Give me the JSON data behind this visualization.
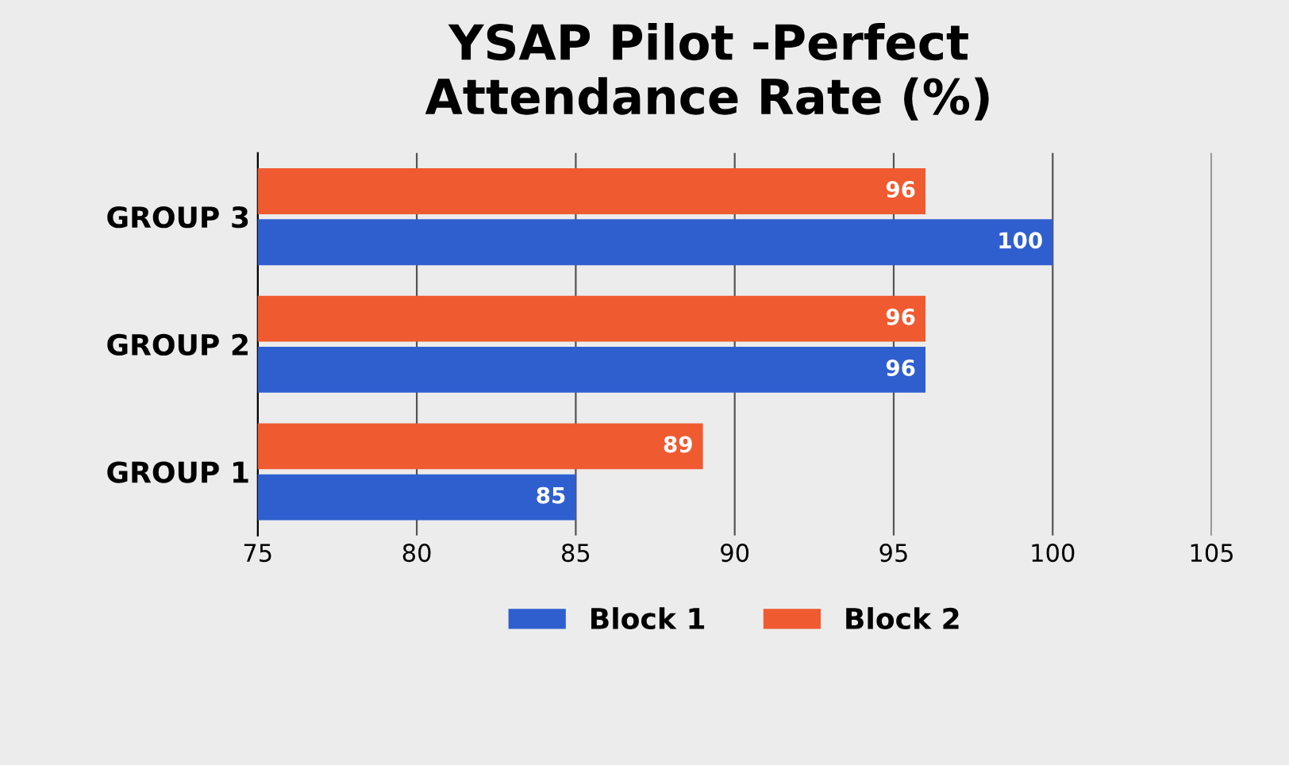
{
  "chart_data": {
    "type": "bar",
    "orientation": "horizontal",
    "title": "YSAP Pilot -Perfect\nAttendance Rate (%)",
    "categories": [
      "GROUP 3",
      "GROUP 2",
      "GROUP 1"
    ],
    "series": [
      {
        "name": "Block 2",
        "color": "#f05a30",
        "values": [
          96,
          96,
          89
        ]
      },
      {
        "name": "Block 1",
        "color": "#2f5fcf",
        "values": [
          100,
          96,
          85
        ]
      }
    ],
    "xlim": [
      75,
      105
    ],
    "xticks": [
      75,
      80,
      85,
      90,
      95,
      100,
      105
    ],
    "grid": "x",
    "legend": "bottom",
    "data_labels": true
  }
}
